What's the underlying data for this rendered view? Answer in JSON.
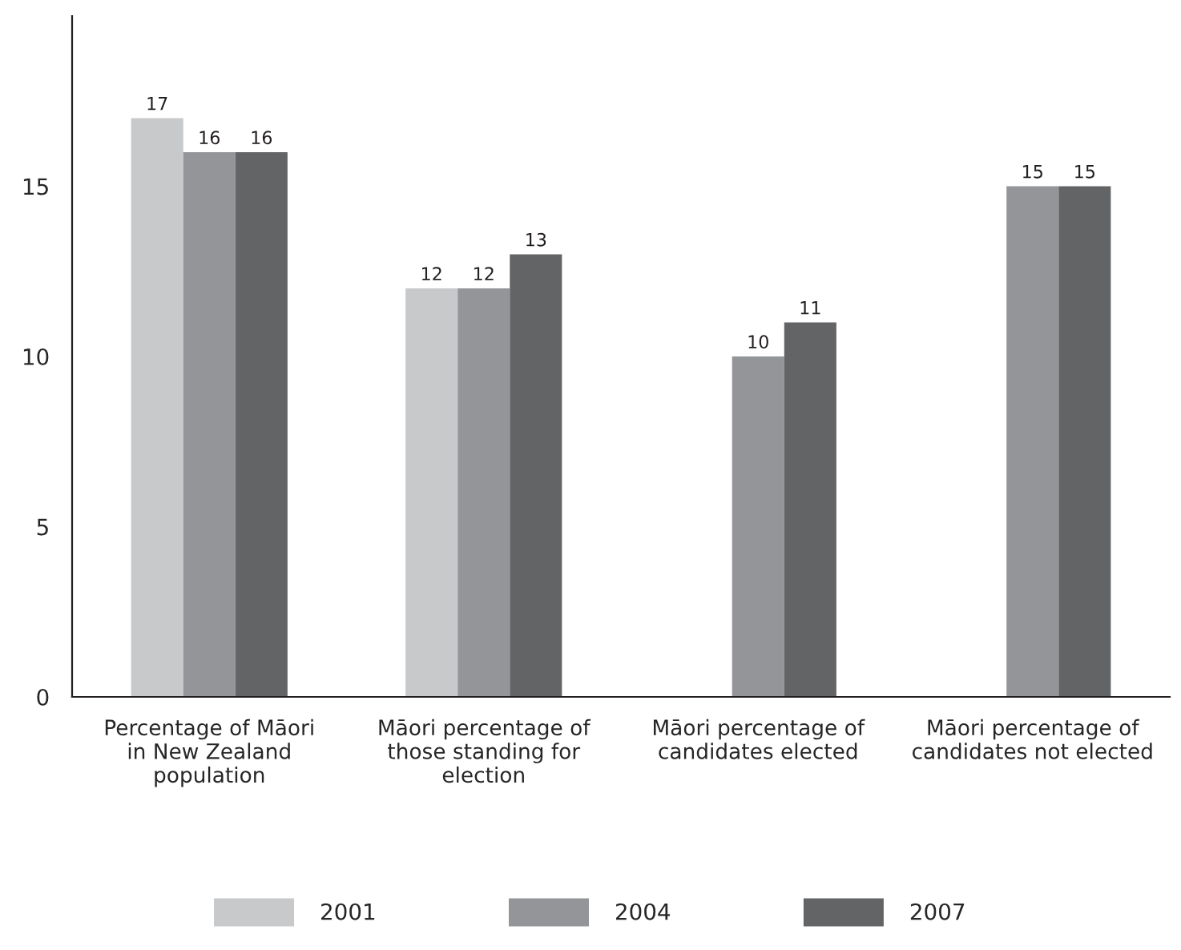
{
  "chart_data": {
    "type": "bar",
    "categories": [
      "Percentage of Māori\nin New Zealand\npopulation",
      "Māori percentage of\nthose standing for\nelection",
      "Māori percentage of\ncandidates elected",
      "Māori percentage of\ncandidates not elected"
    ],
    "series": [
      {
        "name": "2001",
        "color": "#c8c9cb",
        "values": [
          17,
          12,
          null,
          null
        ]
      },
      {
        "name": "2004",
        "color": "#939598",
        "values": [
          16,
          12,
          10,
          15
        ]
      },
      {
        "name": "2007",
        "color": "#636466",
        "values": [
          16,
          13,
          11,
          15
        ]
      }
    ],
    "ylim": [
      0,
      20
    ],
    "yticks": [
      0,
      5,
      10,
      15
    ],
    "data_labels": true,
    "grid": false,
    "legend": "bottom"
  }
}
